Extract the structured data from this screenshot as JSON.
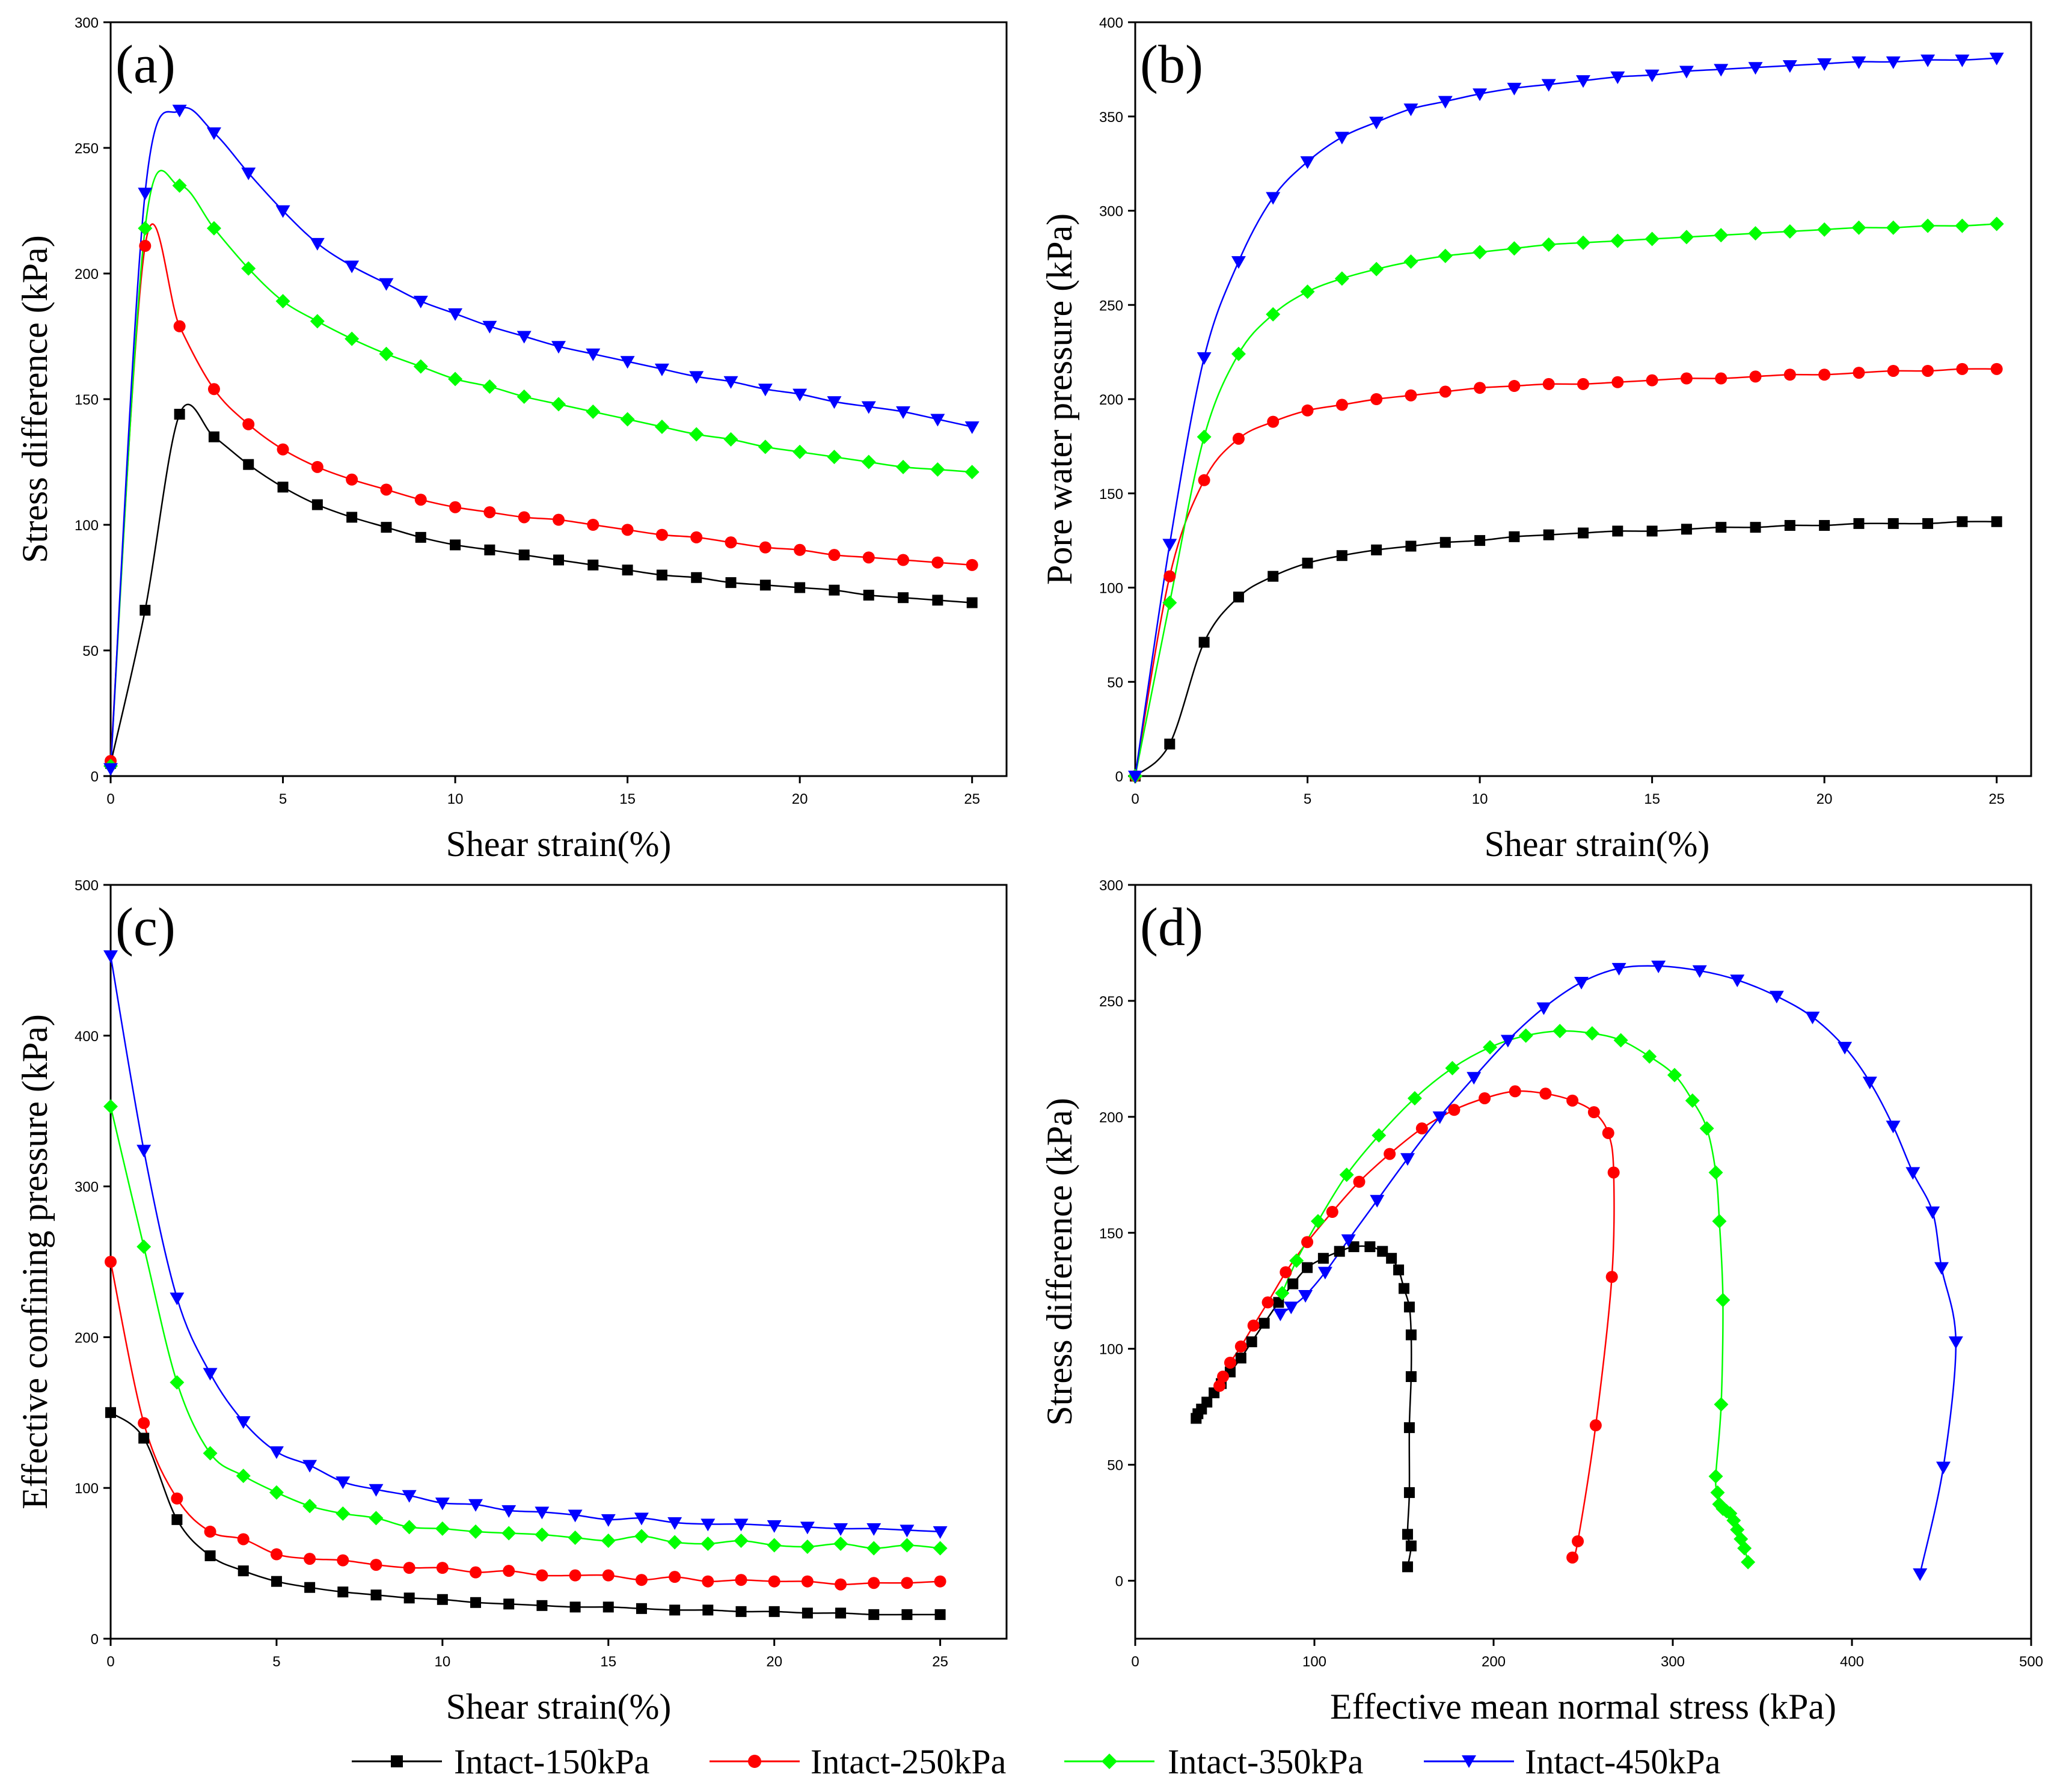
{
  "chart_data": [
    {
      "type": "line",
      "panel_label": "(a)",
      "xlabel": "Shear strain(%)",
      "ylabel": "Stress difference (kPa)",
      "xlim": [
        0,
        26
      ],
      "ylim": [
        0,
        300
      ],
      "xticks": [
        0,
        5,
        10,
        15,
        20,
        25
      ],
      "yticks": [
        0,
        50,
        100,
        150,
        200,
        250,
        300
      ],
      "series": [
        {
          "name": "Intact-150kPa",
          "x": [
            0,
            1,
            2,
            3,
            4,
            5,
            6,
            7,
            8,
            9,
            10,
            11,
            12,
            13,
            14,
            15,
            16,
            17,
            18,
            19,
            20,
            21,
            22,
            23,
            24,
            25
          ],
          "y": [
            5,
            66,
            144,
            135,
            124,
            115,
            108,
            103,
            99,
            95,
            92,
            90,
            88,
            86,
            84,
            82,
            80,
            79,
            77,
            76,
            75,
            74,
            72,
            71,
            70,
            69
          ]
        },
        {
          "name": "Intact-250kPa",
          "x": [
            0,
            1,
            2,
            3,
            4,
            5,
            6,
            7,
            8,
            9,
            10,
            11,
            12,
            13,
            14,
            15,
            16,
            17,
            18,
            19,
            20,
            21,
            22,
            23,
            24,
            25
          ],
          "y": [
            6,
            211,
            179,
            154,
            140,
            130,
            123,
            118,
            114,
            110,
            107,
            105,
            103,
            102,
            100,
            98,
            96,
            95,
            93,
            91,
            90,
            88,
            87,
            86,
            85,
            84
          ]
        },
        {
          "name": "Intact-350kPa",
          "x": [
            0,
            1,
            2,
            3,
            4,
            5,
            6,
            7,
            8,
            9,
            10,
            11,
            12,
            13,
            14,
            15,
            16,
            17,
            18,
            19,
            20,
            21,
            22,
            23,
            24,
            25
          ],
          "y": [
            4,
            218,
            235,
            218,
            202,
            189,
            181,
            174,
            168,
            163,
            158,
            155,
            151,
            148,
            145,
            142,
            139,
            136,
            134,
            131,
            129,
            127,
            125,
            123,
            122,
            121
          ]
        },
        {
          "name": "Intact-450kPa",
          "x": [
            0,
            1,
            2,
            3,
            4,
            5,
            6,
            7,
            8,
            9,
            10,
            11,
            12,
            13,
            14,
            15,
            16,
            17,
            18,
            19,
            20,
            21,
            22,
            23,
            24,
            25
          ],
          "y": [
            3,
            232,
            265,
            256,
            240,
            225,
            212,
            203,
            196,
            189,
            184,
            179,
            175,
            171,
            168,
            165,
            162,
            159,
            157,
            154,
            152,
            149,
            147,
            145,
            142,
            139
          ]
        }
      ]
    },
    {
      "type": "line",
      "panel_label": "(b)",
      "xlabel": "Shear strain(%)",
      "ylabel": "Pore water pressure (kPa)",
      "xlim": [
        0,
        26
      ],
      "ylim": [
        0,
        400
      ],
      "xticks": [
        0,
        5,
        10,
        15,
        20,
        25
      ],
      "yticks": [
        0,
        50,
        100,
        150,
        200,
        250,
        300,
        350,
        400
      ],
      "series": [
        {
          "name": "Intact-150kPa",
          "x": [
            0,
            1,
            2,
            3,
            4,
            5,
            6,
            7,
            8,
            9,
            10,
            11,
            12,
            13,
            14,
            15,
            16,
            17,
            18,
            19,
            20,
            21,
            22,
            23,
            24,
            25
          ],
          "y": [
            0,
            17,
            71,
            95,
            106,
            113,
            117,
            120,
            122,
            124,
            125,
            127,
            128,
            129,
            130,
            130,
            131,
            132,
            132,
            133,
            133,
            134,
            134,
            134,
            135,
            135
          ]
        },
        {
          "name": "Intact-250kPa",
          "x": [
            0,
            1,
            2,
            3,
            4,
            5,
            6,
            7,
            8,
            9,
            10,
            11,
            12,
            13,
            14,
            15,
            16,
            17,
            18,
            19,
            20,
            21,
            22,
            23,
            24,
            25
          ],
          "y": [
            0,
            106,
            157,
            179,
            188,
            194,
            197,
            200,
            202,
            204,
            206,
            207,
            208,
            208,
            209,
            210,
            211,
            211,
            212,
            213,
            213,
            214,
            215,
            215,
            216,
            216
          ]
        },
        {
          "name": "Intact-350kPa",
          "x": [
            0,
            1,
            2,
            3,
            4,
            5,
            6,
            7,
            8,
            9,
            10,
            11,
            12,
            13,
            14,
            15,
            16,
            17,
            18,
            19,
            20,
            21,
            22,
            23,
            24,
            25
          ],
          "y": [
            0,
            92,
            180,
            224,
            245,
            257,
            264,
            269,
            273,
            276,
            278,
            280,
            282,
            283,
            284,
            285,
            286,
            287,
            288,
            289,
            290,
            291,
            291,
            292,
            292,
            293
          ]
        },
        {
          "name": "Intact-450kPa",
          "x": [
            0,
            1,
            2,
            3,
            4,
            5,
            6,
            7,
            8,
            9,
            10,
            11,
            12,
            13,
            14,
            15,
            16,
            17,
            18,
            19,
            20,
            21,
            22,
            23,
            24,
            25
          ],
          "y": [
            0,
            123,
            222,
            273,
            307,
            326,
            339,
            347,
            354,
            358,
            362,
            365,
            367,
            369,
            371,
            372,
            374,
            375,
            376,
            377,
            378,
            379,
            379,
            380,
            380,
            381
          ]
        }
      ]
    },
    {
      "type": "line",
      "panel_label": "(c)",
      "xlabel": "Shear strain(%)",
      "ylabel": "Effective confining pressure (kPa)",
      "xlim": [
        0,
        27
      ],
      "ylim": [
        0,
        500
      ],
      "xticks": [
        0,
        5,
        10,
        15,
        20,
        25
      ],
      "yticks": [
        0,
        100,
        200,
        300,
        400,
        500
      ],
      "series": [
        {
          "name": "Intact-150kPa",
          "x": [
            0,
            1,
            2,
            3,
            4,
            5,
            6,
            7,
            8,
            9,
            10,
            11,
            12,
            13,
            14,
            15,
            16,
            17,
            18,
            19,
            20,
            21,
            22,
            23,
            24,
            25
          ],
          "y": [
            150,
            133,
            79,
            55,
            45,
            38,
            34,
            31,
            29,
            27,
            26,
            24,
            23,
            22,
            21,
            21,
            20,
            19,
            19,
            18,
            18,
            17,
            17,
            16,
            16,
            16
          ]
        },
        {
          "name": "Intact-250kPa",
          "x": [
            0,
            1,
            2,
            3,
            4,
            5,
            6,
            7,
            8,
            9,
            10,
            11,
            12,
            13,
            14,
            15,
            16,
            17,
            18,
            19,
            20,
            21,
            22,
            23,
            24,
            25
          ],
          "y": [
            250,
            143,
            93,
            71,
            66,
            56,
            53,
            52,
            49,
            47,
            47,
            44,
            45,
            42,
            42,
            42,
            39,
            41,
            38,
            39,
            38,
            38,
            36,
            37,
            37,
            38
          ]
        },
        {
          "name": "Intact-350kPa",
          "x": [
            0,
            1,
            2,
            3,
            4,
            5,
            6,
            7,
            8,
            9,
            10,
            11,
            12,
            13,
            14,
            15,
            16,
            17,
            18,
            19,
            20,
            21,
            22,
            23,
            24,
            25
          ],
          "y": [
            353,
            260,
            170,
            123,
            108,
            97,
            88,
            83,
            80,
            74,
            73,
            71,
            70,
            69,
            67,
            65,
            68,
            64,
            63,
            65,
            62,
            61,
            63,
            60,
            62,
            60
          ]
        },
        {
          "name": "Intact-450kPa",
          "x": [
            0,
            1,
            2,
            3,
            4,
            5,
            6,
            7,
            8,
            9,
            10,
            11,
            12,
            13,
            14,
            15,
            16,
            17,
            18,
            19,
            20,
            21,
            22,
            23,
            24,
            25
          ],
          "y": [
            453,
            324,
            226,
            176,
            144,
            124,
            115,
            104,
            99,
            95,
            90,
            89,
            85,
            84,
            82,
            79,
            80,
            77,
            76,
            76,
            75,
            74,
            73,
            73,
            72,
            71
          ]
        }
      ]
    },
    {
      "type": "line",
      "panel_label": "(d)",
      "xlabel": "Effective mean normal stress (kPa)",
      "ylabel": "Stress difference (kPa)",
      "xlim": [
        0,
        500
      ],
      "ylim": [
        -25,
        300
      ],
      "xticks": [
        0,
        100,
        200,
        300,
        400,
        500
      ],
      "yticks": [
        0,
        50,
        100,
        150,
        200,
        250,
        300
      ],
      "series": [
        {
          "name": "Intact-150kPa",
          "x": [
            152,
            154,
            152,
            153,
            153,
            154,
            154,
            153,
            150,
            147,
            143,
            138,
            131,
            122,
            114,
            105,
            96,
            88,
            80,
            72,
            65,
            59,
            53,
            48,
            44,
            40,
            37,
            35,
            34
          ],
          "y": [
            6,
            15,
            20,
            38,
            66,
            88,
            106,
            118,
            126,
            134,
            139,
            142,
            144,
            144,
            142,
            139,
            135,
            128,
            120,
            111,
            103,
            96,
            90,
            85,
            81,
            77,
            74,
            72,
            70
          ]
        },
        {
          "name": "Intact-250kPa",
          "x": [
            244,
            247,
            257,
            266,
            267,
            264,
            256,
            244,
            229,
            212,
            195,
            178,
            160,
            142,
            125,
            110,
            96,
            84,
            74,
            66,
            59,
            53,
            49,
            47
          ],
          "y": [
            10,
            17,
            67,
            131,
            176,
            193,
            202,
            207,
            210,
            211,
            208,
            203,
            195,
            184,
            172,
            159,
            146,
            133,
            120,
            110,
            101,
            94,
            88,
            84
          ]
        },
        {
          "name": "Intact-350kPa",
          "x": [
            342,
            340,
            338,
            336,
            334,
            332,
            330,
            328,
            326,
            325,
            324,
            327,
            328,
            326,
            324,
            319,
            311,
            301,
            287,
            271,
            255,
            237,
            218,
            198,
            177,
            156,
            136,
            118,
            102,
            90,
            82
          ],
          "y": [
            8,
            14,
            18,
            22,
            26,
            29,
            30,
            31,
            33,
            38,
            45,
            76,
            121,
            155,
            176,
            195,
            207,
            218,
            226,
            233,
            236,
            237,
            235,
            230,
            221,
            208,
            192,
            175,
            155,
            138,
            124
          ]
        },
        {
          "name": "Intact-450kPa",
          "x": [
            438,
            451,
            458,
            450,
            445,
            434,
            423,
            410,
            396,
            378,
            358,
            336,
            315,
            292,
            270,
            249,
            228,
            208,
            189,
            170,
            152,
            135,
            119,
            106,
            95,
            87,
            81
          ],
          "y": [
            3,
            49,
            103,
            135,
            159,
            176,
            196,
            215,
            230,
            243,
            252,
            259,
            263,
            265,
            264,
            258,
            247,
            233,
            217,
            200,
            182,
            164,
            147,
            133,
            123,
            118,
            115
          ]
        }
      ]
    }
  ],
  "legend": {
    "items": [
      {
        "label": "Intact-150kPa",
        "color": "#000000",
        "marker": "square"
      },
      {
        "label": "Intact-250kPa",
        "color": "#ff0000",
        "marker": "circle"
      },
      {
        "label": "Intact-350kPa",
        "color": "#00ff00",
        "marker": "diamond"
      },
      {
        "label": "Intact-450kPa",
        "color": "#0000ff",
        "marker": "triangle-down"
      }
    ]
  }
}
